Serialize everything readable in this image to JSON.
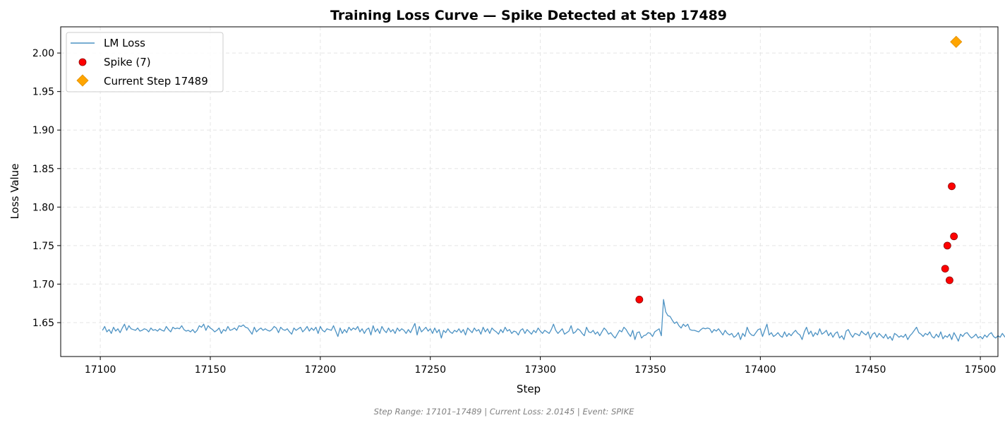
{
  "chart_data": {
    "type": "line",
    "title": "Training Loss Curve — Spike Detected at Step 17489",
    "xlabel": "Step",
    "ylabel": "Loss Value",
    "xlim": [
      17082,
      17508
    ],
    "ylim": [
      1.606,
      2.034
    ],
    "x_ticks": [
      17100,
      17150,
      17200,
      17250,
      17300,
      17350,
      17400,
      17450,
      17500
    ],
    "y_ticks": [
      1.65,
      1.7,
      1.75,
      1.8,
      1.85,
      1.9,
      1.95,
      2.0
    ],
    "x_tick_labels": [
      "17100",
      "17150",
      "17200",
      "17250",
      "17300",
      "17350",
      "17400",
      "17450",
      "17500"
    ],
    "y_tick_labels": [
      "1.65",
      "1.70",
      "1.75",
      "1.80",
      "1.85",
      "1.90",
      "1.95",
      "2.00"
    ],
    "grid": true,
    "legend_position": "top-left",
    "series": [
      {
        "name": "LM Loss",
        "type": "line",
        "color": "#1f77b4",
        "x_start": 17101,
        "x_step": 1,
        "values": [
          1.64,
          1.645,
          1.638,
          1.641,
          1.636,
          1.644,
          1.639,
          1.642,
          1.637,
          1.643,
          1.648,
          1.64,
          1.646,
          1.642,
          1.641,
          1.64,
          1.643,
          1.639,
          1.64,
          1.642,
          1.641,
          1.638,
          1.643,
          1.64,
          1.641,
          1.639,
          1.642,
          1.64,
          1.639,
          1.645,
          1.641,
          1.638,
          1.644,
          1.642,
          1.643,
          1.642,
          1.646,
          1.641,
          1.639,
          1.64,
          1.638,
          1.641,
          1.637,
          1.64,
          1.646,
          1.644,
          1.648,
          1.64,
          1.646,
          1.643,
          1.641,
          1.638,
          1.64,
          1.643,
          1.636,
          1.641,
          1.639,
          1.645,
          1.64,
          1.641,
          1.643,
          1.64,
          1.646,
          1.645,
          1.647,
          1.644,
          1.643,
          1.639,
          1.635,
          1.644,
          1.638,
          1.641,
          1.643,
          1.64,
          1.642,
          1.64,
          1.639,
          1.641,
          1.645,
          1.643,
          1.637,
          1.644,
          1.641,
          1.64,
          1.642,
          1.638,
          1.635,
          1.643,
          1.64,
          1.642,
          1.644,
          1.638,
          1.641,
          1.645,
          1.639,
          1.643,
          1.64,
          1.644,
          1.636,
          1.645,
          1.64,
          1.638,
          1.642,
          1.641,
          1.64,
          1.646,
          1.639,
          1.632,
          1.643,
          1.636,
          1.641,
          1.637,
          1.644,
          1.64,
          1.643,
          1.641,
          1.645,
          1.638,
          1.642,
          1.636,
          1.641,
          1.643,
          1.634,
          1.646,
          1.638,
          1.642,
          1.636,
          1.645,
          1.64,
          1.637,
          1.643,
          1.638,
          1.641,
          1.636,
          1.643,
          1.639,
          1.642,
          1.64,
          1.636,
          1.641,
          1.637,
          1.643,
          1.649,
          1.634,
          1.645,
          1.638,
          1.641,
          1.644,
          1.639,
          1.642,
          1.636,
          1.643,
          1.637,
          1.641,
          1.63,
          1.64,
          1.637,
          1.642,
          1.638,
          1.636,
          1.64,
          1.638,
          1.642,
          1.637,
          1.641,
          1.634,
          1.643,
          1.64,
          1.637,
          1.643,
          1.639,
          1.641,
          1.635,
          1.644,
          1.638,
          1.642,
          1.636,
          1.643,
          1.64,
          1.638,
          1.635,
          1.641,
          1.637,
          1.644,
          1.639,
          1.641,
          1.636,
          1.639,
          1.638,
          1.634,
          1.64,
          1.642,
          1.636,
          1.641,
          1.638,
          1.635,
          1.64,
          1.637,
          1.643,
          1.639,
          1.636,
          1.64,
          1.638,
          1.636,
          1.641,
          1.648,
          1.64,
          1.636,
          1.639,
          1.642,
          1.635,
          1.637,
          1.639,
          1.646,
          1.636,
          1.638,
          1.642,
          1.64,
          1.636,
          1.633,
          1.644,
          1.638,
          1.637,
          1.64,
          1.635,
          1.638,
          1.633,
          1.638,
          1.643,
          1.64,
          1.635,
          1.637,
          1.633,
          1.63,
          1.635,
          1.64,
          1.638,
          1.644,
          1.641,
          1.636,
          1.632,
          1.64,
          1.628,
          1.637,
          1.638,
          1.63,
          1.633,
          1.634,
          1.637,
          1.636,
          1.632,
          1.638,
          1.64,
          1.642,
          1.633,
          1.68,
          1.664,
          1.659,
          1.658,
          1.653,
          1.649,
          1.651,
          1.646,
          1.643,
          1.648,
          1.645,
          1.648,
          1.641,
          1.64,
          1.64,
          1.639,
          1.638,
          1.641,
          1.643,
          1.642,
          1.643,
          1.642,
          1.637,
          1.641,
          1.639,
          1.642,
          1.638,
          1.634,
          1.64,
          1.636,
          1.634,
          1.636,
          1.631,
          1.633,
          1.637,
          1.628,
          1.636,
          1.632,
          1.644,
          1.637,
          1.634,
          1.633,
          1.637,
          1.641,
          1.642,
          1.632,
          1.64,
          1.648,
          1.634,
          1.637,
          1.632,
          1.634,
          1.637,
          1.633,
          1.631,
          1.638,
          1.632,
          1.636,
          1.633,
          1.637,
          1.64,
          1.636,
          1.634,
          1.628,
          1.638,
          1.644,
          1.635,
          1.639,
          1.632,
          1.637,
          1.634,
          1.642,
          1.635,
          1.637,
          1.64,
          1.633,
          1.637,
          1.631,
          1.636,
          1.638,
          1.63,
          1.633,
          1.628,
          1.639,
          1.641,
          1.635,
          1.631,
          1.636,
          1.635,
          1.633,
          1.639,
          1.636,
          1.634,
          1.638,
          1.629,
          1.635,
          1.637,
          1.631,
          1.636,
          1.633,
          1.63,
          1.635,
          1.629,
          1.632,
          1.627,
          1.636,
          1.634,
          1.631,
          1.633,
          1.631,
          1.635,
          1.628,
          1.633,
          1.636,
          1.64,
          1.644,
          1.637,
          1.635,
          1.632,
          1.636,
          1.634,
          1.638,
          1.632,
          1.63,
          1.635,
          1.631,
          1.638,
          1.629,
          1.633,
          1.631,
          1.635,
          1.628,
          1.637,
          1.632,
          1.626,
          1.635,
          1.632,
          1.636,
          1.637,
          1.633,
          1.63,
          1.632,
          1.635,
          1.63,
          1.632,
          1.629,
          1.634,
          1.631,
          1.635,
          1.637,
          1.632,
          1.63,
          1.633,
          1.631,
          1.636,
          1.632,
          1.629,
          1.637,
          1.633,
          1.631,
          1.638,
          1.629,
          1.634,
          1.63,
          1.634,
          1.638,
          1.632,
          1.634,
          1.633,
          1.636,
          1.629,
          1.632,
          1.63,
          1.635,
          1.643,
          1.65,
          1.656,
          1.658,
          1.72,
          1.75,
          1.705,
          1.827,
          1.762,
          2.0145
        ]
      },
      {
        "name": "Spike (7)",
        "type": "scatter",
        "color": "#ff0000",
        "edge_color": "#8b0000",
        "points": [
          {
            "x": 17345,
            "y": 1.68
          },
          {
            "x": 17484,
            "y": 1.72
          },
          {
            "x": 17485,
            "y": 1.75
          },
          {
            "x": 17486,
            "y": 1.705
          },
          {
            "x": 17487,
            "y": 1.827
          },
          {
            "x": 17488,
            "y": 1.762
          }
        ]
      },
      {
        "name": "Current Step 17489",
        "type": "marker",
        "color": "#ffa500",
        "points": [
          {
            "x": 17489,
            "y": 2.0145
          }
        ]
      }
    ],
    "footer": "Step Range: 17101–17489 | Current Loss: 2.0145 | Event: SPIKE"
  }
}
